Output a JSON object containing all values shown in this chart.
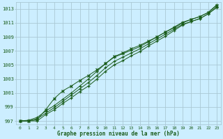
{
  "title": "Graphe pression niveau de la mer (hPa)",
  "background_color": "#cceeff",
  "grid_color": "#aac8d4",
  "line_color": "#1a5c1a",
  "marker_color": "#1a5c1a",
  "text_color": "#1a5c1a",
  "xlim": [
    -0.5,
    23.5
  ],
  "ylim": [
    996.5,
    1014.0
  ],
  "yticks": [
    997,
    999,
    1001,
    1003,
    1005,
    1007,
    1009,
    1011,
    1013
  ],
  "xticks": [
    0,
    1,
    2,
    3,
    4,
    5,
    6,
    7,
    8,
    9,
    10,
    11,
    12,
    13,
    14,
    15,
    16,
    17,
    18,
    19,
    20,
    21,
    22,
    23
  ],
  "series1": [
    997.0,
    997.1,
    997.5,
    998.4,
    999.2,
    1000.1,
    1001.0,
    1002.0,
    1003.0,
    1004.1,
    1005.2,
    1006.1,
    1006.6,
    1007.1,
    1007.6,
    1008.3,
    1009.0,
    1009.7,
    1010.4,
    1011.1,
    1011.5,
    1011.9,
    1012.5,
    1013.6
  ],
  "series2": [
    997.0,
    997.0,
    997.3,
    998.1,
    998.9,
    999.8,
    1000.7,
    1001.6,
    1002.5,
    1003.5,
    1004.6,
    1005.5,
    1006.1,
    1006.7,
    1007.3,
    1008.0,
    1008.7,
    1009.4,
    1010.1,
    1010.8,
    1011.2,
    1011.6,
    1012.3,
    1013.3
  ],
  "series3": [
    997.0,
    997.0,
    997.2,
    998.6,
    1000.2,
    1001.3,
    1002.0,
    1002.8,
    1003.5,
    1004.3,
    1005.2,
    1006.2,
    1006.7,
    1007.3,
    1007.8,
    1008.4,
    1009.0,
    1009.7,
    1010.3,
    1011.0,
    1011.5,
    1011.9,
    1012.5,
    1013.5
  ],
  "series4": [
    997.0,
    997.0,
    997.0,
    997.9,
    998.6,
    999.5,
    1000.3,
    1001.2,
    1002.0,
    1003.0,
    1004.1,
    1005.0,
    1005.6,
    1006.3,
    1006.9,
    1007.7,
    1008.4,
    1009.1,
    1009.9,
    1010.7,
    1011.2,
    1011.6,
    1012.3,
    1013.2
  ]
}
